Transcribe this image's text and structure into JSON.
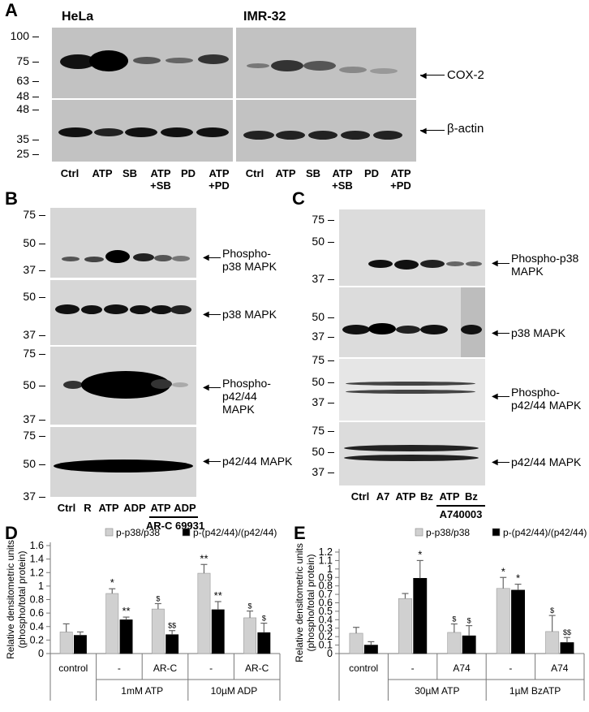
{
  "panel_A": {
    "label": "A",
    "cell_lines": [
      "HeLa",
      "IMR-32"
    ],
    "mw_cox": [
      "100",
      "75",
      "63",
      "48"
    ],
    "mw_actin": [
      "48",
      "35",
      "25"
    ],
    "targets": [
      "COX-2",
      "β-actin"
    ],
    "lanes": [
      "Ctrl",
      "ATP",
      "SB",
      "ATP +SB",
      "PD",
      "ATP +PD"
    ]
  },
  "panel_B": {
    "label": "B",
    "mw_sets": [
      [
        "75",
        "50",
        "37"
      ],
      [
        "50",
        "37"
      ],
      [
        "75",
        "50",
        "37"
      ],
      [
        "75",
        "50",
        "37"
      ]
    ],
    "targets": [
      "Phospho- p38 MAPK",
      "p38 MAPK",
      "Phospho- p42/44 MAPK",
      "p42/44 MAPK"
    ],
    "lanes": [
      "Ctrl",
      "R",
      "ATP",
      "ADP",
      "ATP",
      "ADP"
    ],
    "inhibitor": "AR-C 69931"
  },
  "panel_C": {
    "label": "C",
    "mw_sets": [
      [
        "75",
        "50",
        "37"
      ],
      [
        "50",
        "37"
      ],
      [
        "75",
        "50",
        "37"
      ],
      [
        "75",
        "50",
        "37"
      ]
    ],
    "targets": [
      "Phospho-p38 MAPK",
      "p38 MAPK",
      "Phospho- p42/44 MAPK",
      "p42/44 MAPK"
    ],
    "lanes": [
      "Ctrl",
      "A7",
      "ATP",
      "Bz",
      "ATP",
      "Bz"
    ],
    "inhibitor": "A740003"
  },
  "chart_data": [
    {
      "panel": "D",
      "type": "bar",
      "ylabel": "Relative densitometric units (phospho/total protein)",
      "ylim": [
        0,
        1.6
      ],
      "yticks": [
        "0",
        "0.2",
        "0.4",
        "0.6",
        "0.8",
        "1",
        "1.2",
        "1.4",
        "1.6"
      ],
      "categories": [
        "control",
        "-",
        "AR-C",
        "-",
        "AR-C"
      ],
      "groups": [
        "1mM ATP",
        "10µM ADP"
      ],
      "series": [
        {
          "name": "p-p38/p38",
          "color": "#d0d0d0",
          "values": [
            0.32,
            0.89,
            0.66,
            1.19,
            0.53
          ],
          "errors": [
            0.12,
            0.07,
            0.08,
            0.13,
            0.1
          ],
          "marks": [
            "",
            "*",
            "$",
            "**",
            "$"
          ]
        },
        {
          "name": "p-(p42/44)/(p42/44)",
          "color": "#000000",
          "values": [
            0.27,
            0.5,
            0.28,
            0.65,
            0.31
          ],
          "errors": [
            0.05,
            0.04,
            0.06,
            0.12,
            0.14
          ],
          "marks": [
            "",
            "**",
            "$$",
            "**",
            "$"
          ]
        }
      ],
      "legend": "top"
    },
    {
      "panel": "E",
      "type": "bar",
      "ylabel": "Relative densitometric units (phospho/total protein)",
      "ylim": [
        0,
        1.2
      ],
      "yticks": [
        "0",
        "0.1",
        "0.2",
        "0.3",
        "0.4",
        "0.5",
        "0.6",
        "0.7",
        "0.8",
        "0.9",
        "1",
        "1.1",
        "1.2"
      ],
      "categories": [
        "control",
        "-",
        "A74",
        "-",
        "A74"
      ],
      "groups": [
        "30µM ATP",
        "1µM BzATP"
      ],
      "series": [
        {
          "name": "p-p38/p38",
          "color": "#d0d0d0",
          "values": [
            0.24,
            0.65,
            0.25,
            0.77,
            0.26
          ],
          "errors": [
            0.07,
            0.06,
            0.1,
            0.13,
            0.19
          ],
          "marks": [
            "",
            "",
            "$",
            "*",
            "$"
          ]
        },
        {
          "name": "p-(p42/44)/(p42/44)",
          "color": "#000000",
          "values": [
            0.1,
            0.89,
            0.21,
            0.75,
            0.13
          ],
          "errors": [
            0.04,
            0.21,
            0.12,
            0.07,
            0.06
          ],
          "marks": [
            "",
            "*",
            "$",
            "*",
            "$$"
          ]
        }
      ],
      "legend": "top"
    }
  ]
}
